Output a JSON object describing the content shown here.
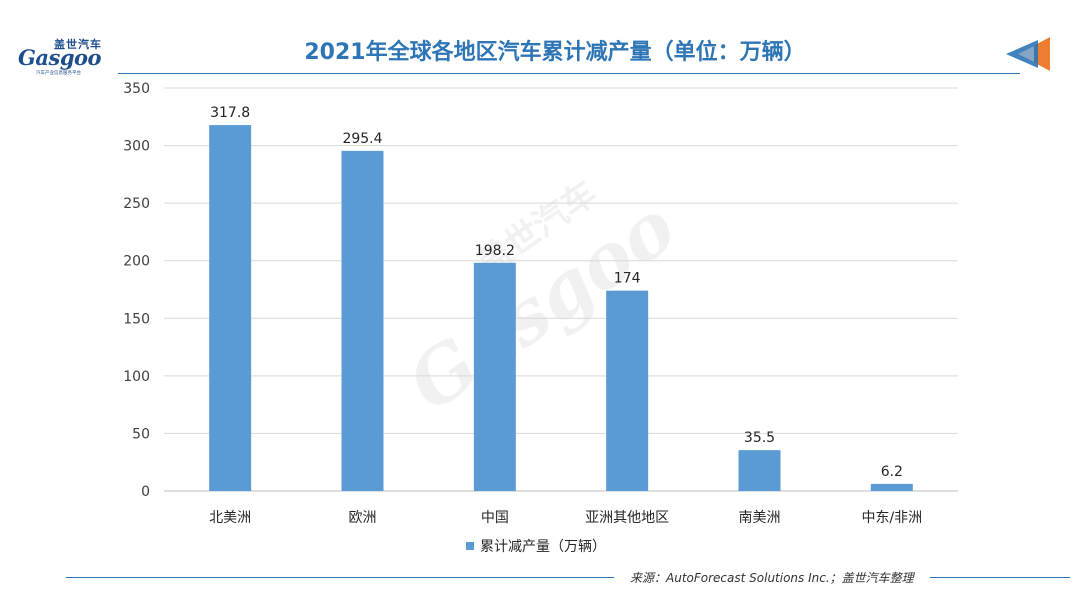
{
  "brand": {
    "logo_cn": "盖世汽车",
    "logo_en": "Gasgoo",
    "logo_tagline": "汽车产业信息服务平台",
    "watermark_cn": "盖世汽车",
    "watermark_en": "Gasgoo"
  },
  "header": {
    "title": "2021年全球各地区汽车累计减产量（单位：万辆）"
  },
  "footer": {
    "source": "来源：AutoForecast Solutions Inc.；盖世汽车整理"
  },
  "colors": {
    "bar": "#5b9bd5",
    "title": "#2e75b6",
    "grid": "#d9d9d9",
    "arrow_orange": "#ed7d31",
    "arrow_blue": "#2e75b6"
  },
  "icons": {
    "nav": "arrow-left-icon"
  },
  "chart_data": {
    "type": "bar",
    "title": "2021年全球各地区汽车累计减产量（单位：万辆）",
    "categories": [
      "北美洲",
      "欧洲",
      "中国",
      "亚洲其他地区",
      "南美洲",
      "中东/非洲"
    ],
    "series": [
      {
        "name": "累计减产量（万辆）",
        "values": [
          317.8,
          295.4,
          198.2,
          174,
          35.5,
          6.2
        ],
        "labels": [
          "317.8",
          "295.4",
          "198.2",
          "174",
          "35.5",
          "6.2"
        ]
      }
    ],
    "ylim": [
      0,
      350
    ],
    "yticks": [
      0,
      50,
      100,
      150,
      200,
      250,
      300,
      350
    ],
    "xlabel": "",
    "ylabel": "",
    "grid": true,
    "legend": "bottom-center"
  }
}
